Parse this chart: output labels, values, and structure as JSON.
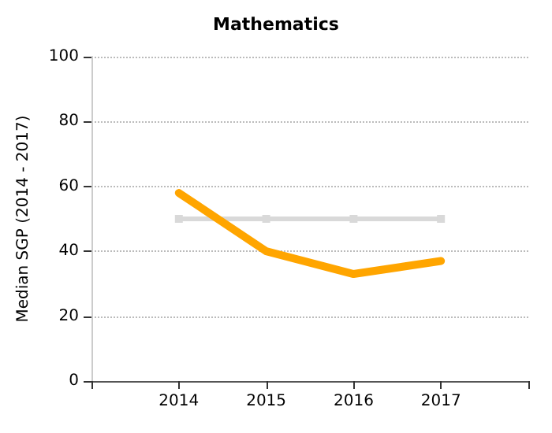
{
  "chart_data": {
    "type": "line",
    "title": "Mathematics",
    "ylabel": "Median SGP (2014 - 2017)",
    "x": [
      2014,
      2015,
      2016,
      2017
    ],
    "series": [
      {
        "color": "#d9d9d9",
        "values": [
          50,
          50,
          50,
          50
        ],
        "marker": "square"
      },
      {
        "color": "#ffa500",
        "values": [
          58,
          40,
          33,
          37
        ],
        "marker": "none"
      }
    ],
    "xlim": [
      2013,
      2018
    ],
    "xticks": [
      {
        "value": 2013,
        "label": null
      },
      2014,
      2015,
      2016,
      2017,
      {
        "value": 2018,
        "label": null
      }
    ],
    "ylim": [
      0,
      100
    ],
    "yticks": [
      0,
      20,
      40,
      60,
      80,
      100
    ],
    "grid": "y",
    "line_style": "solid"
  }
}
